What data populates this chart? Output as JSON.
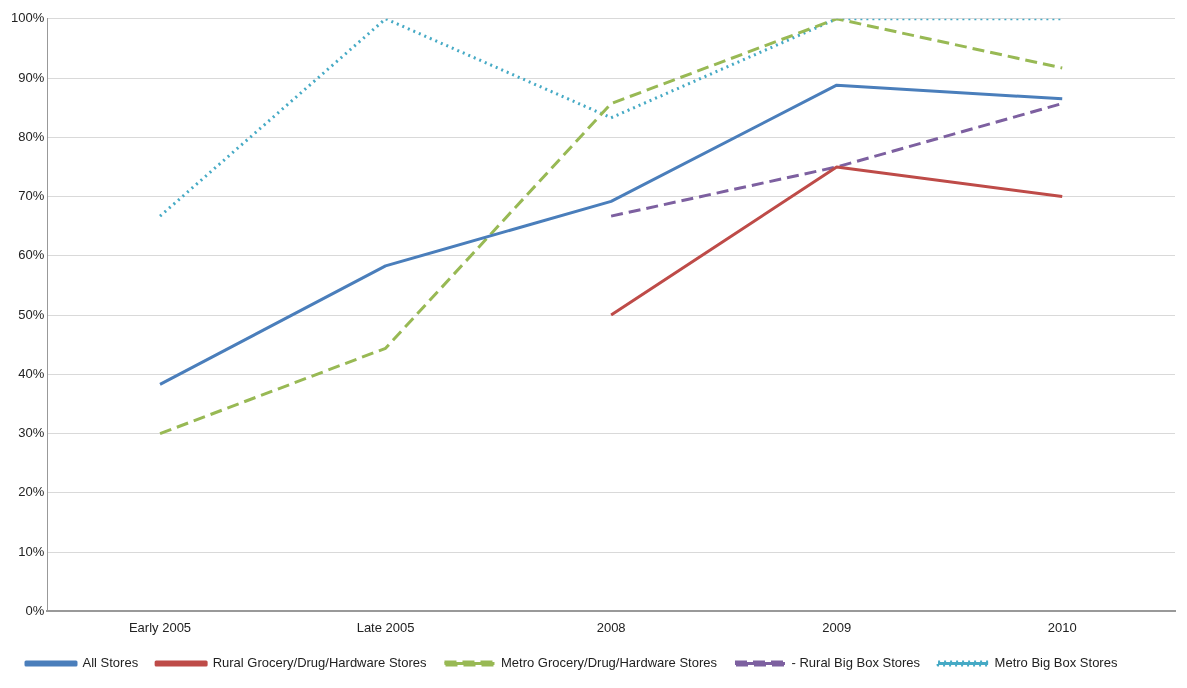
{
  "chart_data": {
    "type": "line",
    "categories": [
      "Early 2005",
      "Late 2005",
      "2008",
      "2009",
      "2010"
    ],
    "series": [
      {
        "name": "All Stores",
        "color": "#4a7ebb",
        "line_style": "solid",
        "values": [
          38.3,
          58.3,
          69.2,
          88.8,
          86.5
        ]
      },
      {
        "name": "Rural Grocery/Drug/Hardware Stores",
        "color": "#be4b48",
        "line_style": "solid",
        "values": [
          null,
          null,
          50,
          75,
          70
        ]
      },
      {
        "name": "Metro Grocery/Drug/Hardware Stores",
        "color": "#98b954",
        "line_style": "dashed",
        "values": [
          30,
          44.4,
          85.7,
          100,
          91.7
        ]
      },
      {
        "name": "- Rural Big Box Stores",
        "color": "#7d60a0",
        "line_style": "dashed",
        "values": [
          null,
          null,
          66.7,
          75,
          85.7
        ]
      },
      {
        "name": "Metro Big Box Stores",
        "color": "#46aac5",
        "line_style": "dotted",
        "values": [
          66.7,
          100,
          83.3,
          100,
          100
        ]
      }
    ],
    "ylim": [
      0,
      100
    ],
    "yticks": [
      {
        "value": 0,
        "label": "0%"
      },
      {
        "value": 10,
        "label": "10%"
      },
      {
        "value": 20,
        "label": "20%"
      },
      {
        "value": 30,
        "label": "30%"
      },
      {
        "value": 40,
        "label": "40%"
      },
      {
        "value": 50,
        "label": "50%"
      },
      {
        "value": 60,
        "label": "60%"
      },
      {
        "value": 70,
        "label": "70%"
      },
      {
        "value": 80,
        "label": "80%"
      },
      {
        "value": 90,
        "label": "90%"
      },
      {
        "value": 100,
        "label": "100%"
      }
    ],
    "grid": "y",
    "legend": "bottom",
    "marker": "none"
  }
}
